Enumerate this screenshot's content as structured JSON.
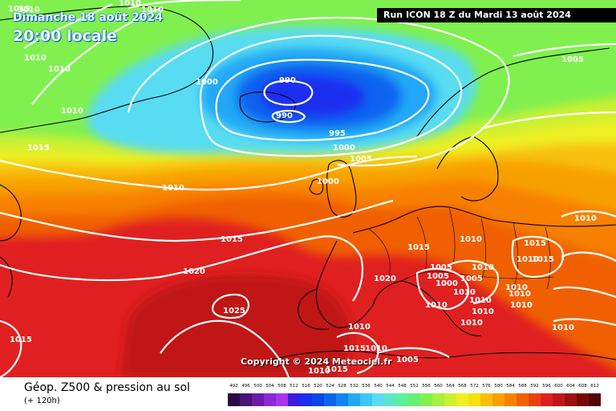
{
  "header": {
    "date_label": "Dimanche 18 août 2024",
    "time_label": "20:00 locale",
    "run_label": "Run ICON 18 Z du Mardi 13 août 2024"
  },
  "copyright": "Copyright © 2024 Meteociel.fr",
  "footer": {
    "title": "Géop. Z500 & pression au sol",
    "subtitle": "(+ 120h)"
  },
  "legend": {
    "values": [
      "492",
      "496",
      "500",
      "504",
      "508",
      "512",
      "516",
      "520",
      "524",
      "528",
      "532",
      "536",
      "540",
      "544",
      "548",
      "552",
      "556",
      "560",
      "564",
      "568",
      "572",
      "576",
      "580",
      "584",
      "588",
      "592",
      "596",
      "600",
      "604",
      "608",
      "612"
    ],
    "colors": [
      "#2a0a45",
      "#4b137a",
      "#6a1ba8",
      "#8c28d6",
      "#a536ee",
      "#3a1ce0",
      "#1a2ef0",
      "#0a46e6",
      "#0c64f0",
      "#1086f2",
      "#23a8f6",
      "#3ec6f8",
      "#58dcf2",
      "#5ee6c6",
      "#5ef09a",
      "#66f070",
      "#80f050",
      "#a8f040",
      "#ccf030",
      "#eef020",
      "#f8e010",
      "#f8c008",
      "#f8a000",
      "#f88000",
      "#f06000",
      "#ec4010",
      "#e02020",
      "#c01818",
      "#9c1010",
      "#780808",
      "#500404"
    ]
  },
  "isobar_labels": [
    {
      "t": "1010"
    },
    {
      "t": "1010"
    },
    {
      "t": "1015"
    },
    {
      "t": "1010"
    },
    {
      "t": "1010"
    },
    {
      "t": "1010"
    },
    {
      "t": "1000"
    },
    {
      "t": "990"
    },
    {
      "t": "990"
    },
    {
      "t": "995"
    },
    {
      "t": "1000"
    },
    {
      "t": "1005"
    },
    {
      "t": "1000"
    },
    {
      "t": "1015"
    },
    {
      "t": "1010"
    },
    {
      "t": "1010"
    },
    {
      "t": "1015"
    },
    {
      "t": "1020"
    },
    {
      "t": "1025"
    },
    {
      "t": "1015"
    },
    {
      "t": "1020"
    },
    {
      "t": "1015"
    },
    {
      "t": "1010"
    },
    {
      "t": "1005"
    },
    {
      "t": "1005"
    },
    {
      "t": "1000"
    },
    {
      "t": "1005"
    },
    {
      "t": "1010"
    },
    {
      "t": "1010"
    },
    {
      "t": "1010"
    },
    {
      "t": "1010"
    },
    {
      "t": "1015"
    },
    {
      "t": "1010"
    },
    {
      "t": "1015"
    },
    {
      "t": "1010"
    },
    {
      "t": "1010"
    },
    {
      "t": "1010"
    },
    {
      "t": "1010"
    },
    {
      "t": "1010"
    },
    {
      "t": "1005"
    },
    {
      "t": "1010"
    },
    {
      "t": "1010"
    },
    {
      "t": "1015"
    },
    {
      "t": "1015"
    },
    {
      "t": "1010"
    },
    {
      "t": "1010"
    },
    {
      "t": "1010"
    },
    {
      "t": "1005"
    },
    {
      "t": "1015"
    },
    {
      "t": "1010"
    }
  ]
}
